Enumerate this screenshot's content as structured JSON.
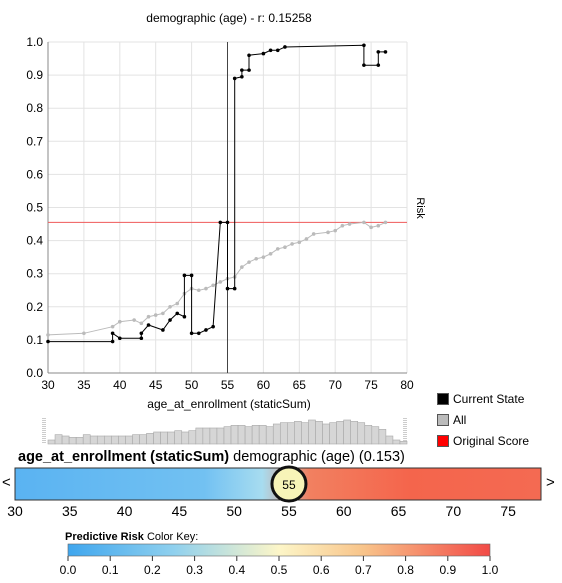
{
  "chart_data": {
    "type": "line",
    "title": "demographic (age) - r: 0.15258",
    "xlabel": "age_at_enrollment (staticSum)",
    "ylabel": "Risk",
    "xlim": [
      30,
      80
    ],
    "ylim": [
      0,
      1
    ],
    "x_ticks": [
      "30",
      "35",
      "40",
      "45",
      "50",
      "55",
      "60",
      "65",
      "70",
      "75",
      "80"
    ],
    "y_ticks": [
      "0.0",
      "0.1",
      "0.2",
      "0.3",
      "0.4",
      "0.5",
      "0.6",
      "0.7",
      "0.8",
      "0.9",
      "1.0"
    ],
    "grid": true,
    "current_value": 55,
    "original_score": 0.455,
    "series": [
      {
        "name": "Current State",
        "color": "#000000",
        "points": [
          [
            30,
            0.095
          ],
          [
            39,
            0.095
          ],
          [
            39,
            0.12
          ],
          [
            40,
            0.105
          ],
          [
            43,
            0.105
          ],
          [
            43,
            0.12
          ],
          [
            44,
            0.145
          ],
          [
            46,
            0.13
          ],
          [
            47,
            0.16
          ],
          [
            48,
            0.18
          ],
          [
            49,
            0.17
          ],
          [
            49,
            0.295
          ],
          [
            50,
            0.295
          ],
          [
            50,
            0.12
          ],
          [
            51,
            0.12
          ],
          [
            52,
            0.13
          ],
          [
            53,
            0.14
          ],
          [
            54,
            0.455
          ],
          [
            55,
            0.455
          ],
          [
            55,
            0.255
          ],
          [
            56,
            0.255
          ],
          [
            56,
            0.89
          ],
          [
            57,
            0.895
          ],
          [
            57,
            0.915
          ],
          [
            58,
            0.915
          ],
          [
            58,
            0.96
          ],
          [
            60,
            0.965
          ],
          [
            61,
            0.975
          ],
          [
            62,
            0.975
          ],
          [
            63,
            0.985
          ],
          [
            74,
            0.99
          ],
          [
            74,
            0.93
          ],
          [
            76,
            0.93
          ],
          [
            76,
            0.97
          ],
          [
            77,
            0.97
          ]
        ]
      },
      {
        "name": "All",
        "color": "#bbbbbb",
        "points": [
          [
            30,
            0.115
          ],
          [
            35,
            0.12
          ],
          [
            39,
            0.14
          ],
          [
            40,
            0.155
          ],
          [
            42,
            0.16
          ],
          [
            43,
            0.15
          ],
          [
            44,
            0.17
          ],
          [
            45,
            0.175
          ],
          [
            46,
            0.18
          ],
          [
            47,
            0.2
          ],
          [
            48,
            0.21
          ],
          [
            49,
            0.24
          ],
          [
            50,
            0.255
          ],
          [
            51,
            0.25
          ],
          [
            52,
            0.255
          ],
          [
            53,
            0.265
          ],
          [
            54,
            0.275
          ],
          [
            55,
            0.285
          ],
          [
            56,
            0.29
          ],
          [
            57,
            0.32
          ],
          [
            58,
            0.335
          ],
          [
            59,
            0.345
          ],
          [
            60,
            0.35
          ],
          [
            61,
            0.36
          ],
          [
            62,
            0.375
          ],
          [
            63,
            0.38
          ],
          [
            64,
            0.39
          ],
          [
            65,
            0.395
          ],
          [
            66,
            0.405
          ],
          [
            67,
            0.42
          ],
          [
            69,
            0.425
          ],
          [
            70,
            0.43
          ],
          [
            71,
            0.445
          ],
          [
            72,
            0.45
          ],
          [
            74,
            0.455
          ],
          [
            75,
            0.44
          ],
          [
            76,
            0.445
          ],
          [
            77,
            0.455
          ]
        ]
      }
    ]
  },
  "legend": {
    "items": [
      {
        "label": "Current State",
        "color": "#000000"
      },
      {
        "label": "All",
        "color": "#bbbbbb"
      },
      {
        "label": "Original Score",
        "color": "#ff0000"
      }
    ]
  },
  "histogram": {
    "values": [
      3,
      7,
      6,
      5,
      5,
      7,
      6,
      6,
      6,
      6,
      6,
      6,
      7,
      7,
      8,
      9,
      9,
      9,
      10,
      9,
      10,
      12,
      12,
      12,
      12,
      13,
      14,
      14,
      13,
      14,
      14,
      13,
      15,
      16,
      16,
      17,
      16,
      18,
      17,
      15,
      16,
      17,
      18,
      17,
      16,
      14,
      13,
      11,
      6,
      3,
      2
    ]
  },
  "feature": {
    "name": "age_at_enrollment (staticSum)",
    "description": "demographic (age) (0.153)",
    "prev_label": "<",
    "next_label": ">",
    "current_value": "55",
    "range": [
      30,
      78
    ],
    "ticks": [
      "30",
      "35",
      "40",
      "45",
      "50",
      "55",
      "60",
      "65",
      "70",
      "75"
    ]
  },
  "color_key": {
    "title_bold": "Predictive Risk",
    "title_rest": "Color Key:",
    "ticks": [
      "0.0",
      "0.1",
      "0.2",
      "0.3",
      "0.4",
      "0.5",
      "0.6",
      "0.7",
      "0.8",
      "0.9",
      "1.0"
    ]
  }
}
